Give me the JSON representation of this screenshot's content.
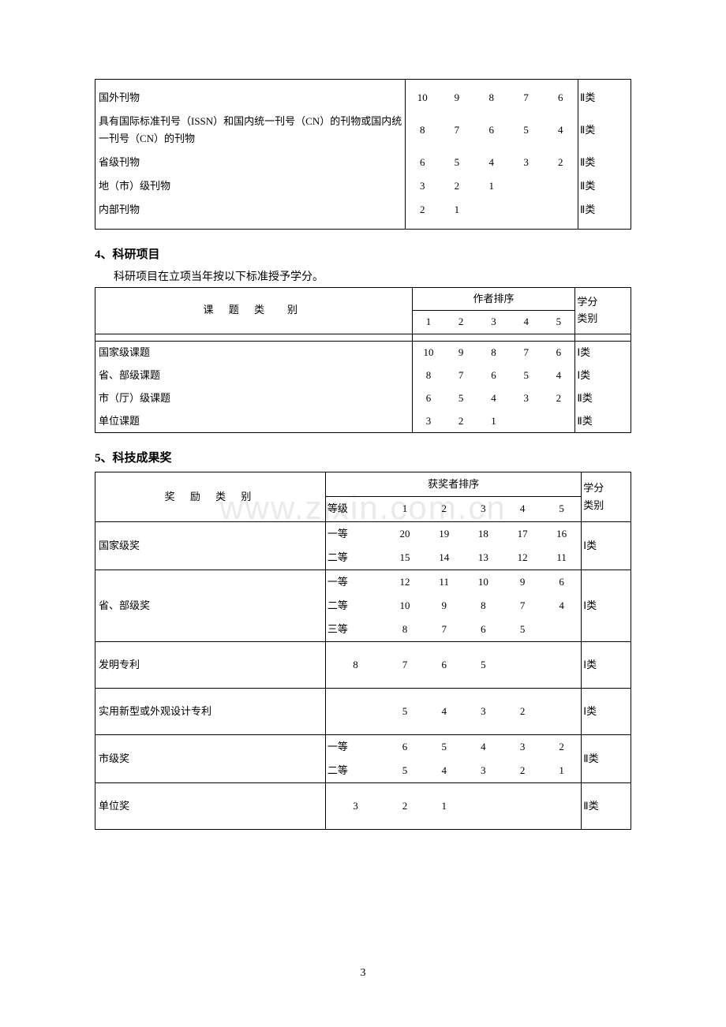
{
  "page_number": "3",
  "watermark": "www.zixin.com.cn",
  "colors": {
    "text": "#000000",
    "border": "#000000",
    "bg": "#ffffff",
    "watermark": "#eaeaea"
  },
  "table1": {
    "rows": [
      {
        "label": "国外刊物",
        "v": [
          "10",
          "9",
          "8",
          "7",
          "6"
        ],
        "cat": "Ⅱ类"
      },
      {
        "label": "具有国际标准刊号（ISSN）和国内统一刊号（CN）的刊物或国内统一刊号（CN）的刊物",
        "v": [
          "8",
          "7",
          "6",
          "5",
          "4"
        ],
        "cat": "Ⅱ类"
      },
      {
        "label": "省级刊物",
        "v": [
          "6",
          "5",
          "4",
          "3",
          "2"
        ],
        "cat": "Ⅱ类"
      },
      {
        "label": "地（市）级刊物",
        "v": [
          "3",
          "2",
          "1",
          "",
          ""
        ],
        "cat": "Ⅱ类"
      },
      {
        "label": "内部刊物",
        "v": [
          "2",
          "1",
          "",
          "",
          ""
        ],
        "cat": "Ⅱ类"
      }
    ]
  },
  "section4": {
    "title": "4、科研项目",
    "intro": "科研项目在立项当年按以下标准授予学分。",
    "header_left": "课 题 类　别",
    "header_top": "作者排序",
    "header_nums": [
      "1",
      "2",
      "3",
      "4",
      "5"
    ],
    "header_cat": "学分类别",
    "cat_line1": "学分",
    "cat_line2": "类别",
    "rows": [
      {
        "label": "国家级课题",
        "v": [
          "10",
          "9",
          "8",
          "7",
          "6"
        ],
        "cat": "Ⅰ类"
      },
      {
        "label": "省、部级课题",
        "v": [
          "8",
          "7",
          "6",
          "5",
          "4"
        ],
        "cat": "Ⅰ类"
      },
      {
        "label": "市（厅）级课题",
        "v": [
          "6",
          "5",
          "4",
          "3",
          "2"
        ],
        "cat": "Ⅱ类"
      },
      {
        "label": "单位课题",
        "v": [
          "3",
          "2",
          "1",
          "",
          ""
        ],
        "cat": "Ⅱ类"
      }
    ]
  },
  "section5": {
    "title": "5、科技成果奖",
    "header_left": "奖 励 类 别",
    "header_top": "获奖者排序",
    "header_grade": "等级",
    "header_nums": [
      "1",
      "2",
      "3",
      "4",
      "5"
    ],
    "cat_line1": "学分",
    "cat_line2": "类别",
    "groups": [
      {
        "label": "国家级奖",
        "cat": "Ⅰ类",
        "lines": [
          {
            "grade": "一等",
            "v": [
              "20",
              "19",
              "18",
              "17",
              "16"
            ]
          },
          {
            "grade": "二等",
            "v": [
              "15",
              "14",
              "13",
              "12",
              "11"
            ]
          }
        ]
      },
      {
        "label": "省、部级奖",
        "cat": "Ⅰ类",
        "lines": [
          {
            "grade": "一等",
            "v": [
              "12",
              "11",
              "10",
              "9",
              "6"
            ]
          },
          {
            "grade": "二等",
            "v": [
              "10",
              "9",
              "8",
              "7",
              "4"
            ]
          },
          {
            "grade": "三等",
            "v": [
              "8",
              "7",
              "6",
              "5",
              ""
            ]
          }
        ]
      },
      {
        "label": "发明专利",
        "cat": "Ⅰ类",
        "lines": [
          {
            "grade": "",
            "v": [
              "",
              "",
              "",
              "",
              ""
            ],
            "alt": [
              "8",
              "7",
              "6",
              "5",
              ""
            ]
          }
        ],
        "shift": true
      },
      {
        "label": "实用新型或外观设计专利",
        "cat": "Ⅰ类",
        "lines": [
          {
            "grade": "",
            "v": [
              "5",
              "4",
              "3",
              "2",
              ""
            ]
          }
        ]
      },
      {
        "label": "市级奖",
        "cat": "Ⅱ类",
        "lines": [
          {
            "grade": "一等",
            "v": [
              "6",
              "5",
              "4",
              "3",
              "2"
            ]
          },
          {
            "grade": "二等",
            "v": [
              "5",
              "4",
              "3",
              "2",
              "1"
            ]
          }
        ]
      },
      {
        "label": "单位奖",
        "cat": "Ⅱ类",
        "lines": [
          {
            "grade": "",
            "v": [
              "",
              "",
              "",
              "",
              ""
            ],
            "alt": [
              "3",
              "2",
              "1",
              "",
              ""
            ]
          }
        ],
        "shift": true
      }
    ]
  }
}
